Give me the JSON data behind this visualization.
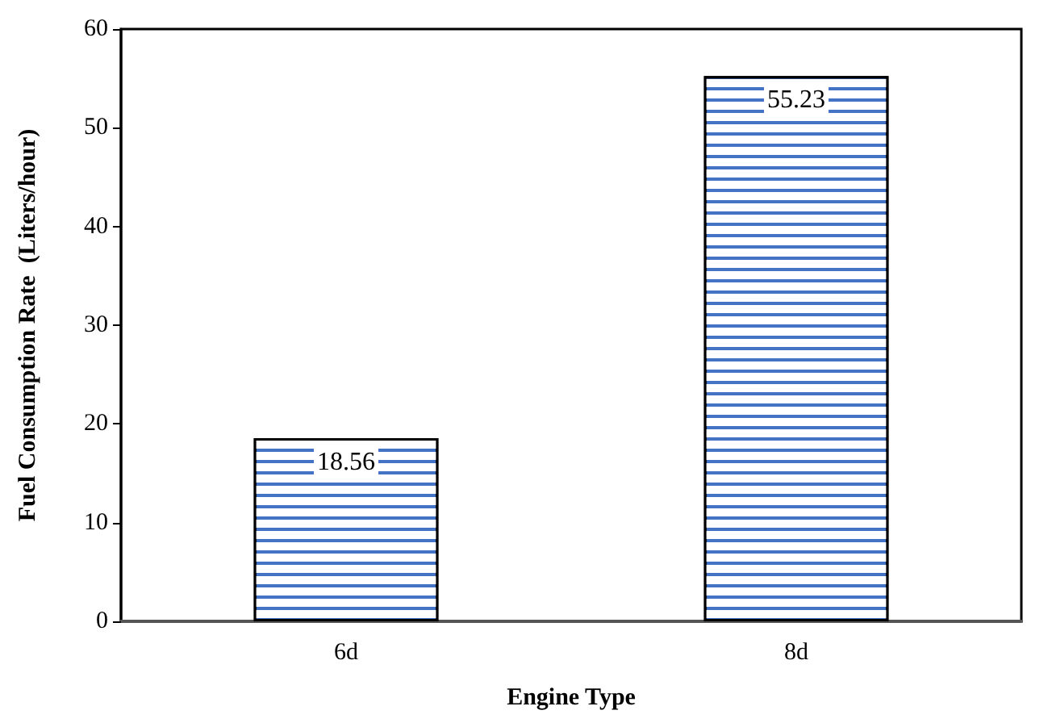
{
  "chart_data": {
    "type": "bar",
    "xlabel": "Engine Type",
    "ylabel": "Fuel Consumption Rate  (Liters/hour)",
    "categories": [
      "6d",
      "8d"
    ],
    "values": [
      18.56,
      55.23
    ],
    "color": "#4472c4",
    "ylim": [
      0,
      60
    ],
    "yticks": [
      0,
      10,
      20,
      30,
      40,
      50,
      60
    ],
    "grid": false,
    "data_labels": true
  }
}
